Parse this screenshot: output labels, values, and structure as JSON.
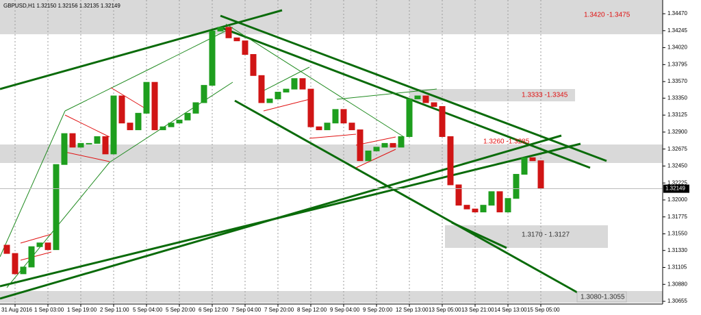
{
  "chart_data": {
    "type": "candlestick",
    "title": "GBPUSD,H1  1.32150 1.32156 1.32135 1.32149",
    "categories": [
      null,
      "31 Aug 2016",
      null,
      null,
      null,
      "1 Sep 03:00",
      null,
      null,
      null,
      "1 Sep 19:00",
      null,
      null,
      null,
      "2 Sep 11:00",
      null,
      null,
      null,
      "5 Sep 04:00",
      null,
      null,
      null,
      "5 Sep 20:00",
      null,
      null,
      null,
      "6 Sep 12:00",
      null,
      null,
      null,
      "7 Sep 04:00",
      null,
      null,
      null,
      "7 Sep 20:00",
      null,
      null,
      null,
      "8 Sep 12:00",
      null,
      null,
      null,
      "9 Sep 04:00",
      null,
      null,
      null,
      "9 Sep 20:00",
      null,
      null,
      null,
      "12 Sep 13:00",
      null,
      null,
      null,
      "13 Sep 05:00",
      null,
      null,
      null,
      "13 Sep 21:00",
      null,
      null,
      null,
      "14 Sep 13:00",
      null,
      null,
      null,
      "15 Sep 05:00"
    ],
    "open": [
      1.314,
      1.3129,
      1.3102,
      1.3111,
      1.3138,
      1.3143,
      1.3134,
      1.3247,
      1.3288,
      1.327,
      1.3275,
      1.3275,
      1.3284,
      1.3261,
      1.3338,
      1.3302,
      1.3293,
      1.3315,
      1.3356,
      1.3293,
      1.3297,
      1.3302,
      1.3306,
      1.3315,
      1.3329,
      1.3352,
      1.3424,
      1.3429,
      1.3415,
      1.3411,
      1.3393,
      1.3365,
      1.3329,
      1.3334,
      1.3343,
      1.3347,
      1.3361,
      1.3347,
      1.3297,
      1.3293,
      1.3302,
      1.332,
      1.3302,
      1.3293,
      1.3252,
      1.3265,
      1.327,
      1.3275,
      1.327,
      1.3284,
      1.3334,
      1.3338,
      1.3329,
      1.3324,
      1.3284,
      1.322,
      1.3193,
      1.3188,
      1.3184,
      1.3193,
      1.3211,
      1.3184,
      1.3202,
      1.3234,
      1.3256,
      1.3252
    ],
    "close": [
      1.3129,
      1.3102,
      1.3111,
      1.3138,
      1.3143,
      1.3134,
      1.3247,
      1.3288,
      1.327,
      1.3275,
      1.3275,
      1.3284,
      1.3261,
      1.3338,
      1.3302,
      1.3293,
      1.3315,
      1.3356,
      1.3293,
      1.3297,
      1.3302,
      1.3306,
      1.3315,
      1.3329,
      1.3352,
      1.3424,
      1.3429,
      1.3415,
      1.3411,
      1.3393,
      1.3365,
      1.3329,
      1.3334,
      1.3343,
      1.3347,
      1.3361,
      1.3347,
      1.3297,
      1.3293,
      1.3302,
      1.332,
      1.3302,
      1.3293,
      1.3252,
      1.3265,
      1.327,
      1.3275,
      1.327,
      1.3284,
      1.3334,
      1.3338,
      1.3329,
      1.3324,
      1.3284,
      1.322,
      1.3193,
      1.3188,
      1.3184,
      1.3193,
      1.3211,
      1.3184,
      1.3202,
      1.3234,
      1.3256,
      1.3252,
      1.3215
    ],
    "up_color": "#1e9e1e",
    "down_color": "#d01515",
    "last_price": 1.32149,
    "ylim": [
      1.30619,
      1.34652
    ],
    "yticks": [
      {
        "value": 1.3447,
        "label": "1.34470"
      },
      {
        "value": 1.34245,
        "label": "1.34245"
      },
      {
        "value": 1.3402,
        "label": "1.34020"
      },
      {
        "value": 1.33795,
        "label": "1.33795"
      },
      {
        "value": 1.3357,
        "label": "1.33570"
      },
      {
        "value": 1.3335,
        "label": "1.33350"
      },
      {
        "value": 1.33125,
        "label": "1.33125"
      },
      {
        "value": 1.329,
        "label": "1.32900"
      },
      {
        "value": 1.32675,
        "label": "1.32675"
      },
      {
        "value": 1.3245,
        "label": "1.32450"
      },
      {
        "value": 1.32225,
        "label": "1.32225"
      },
      {
        "value": 1.32,
        "label": "1.32000"
      },
      {
        "value": 1.31775,
        "label": "1.31775"
      },
      {
        "value": 1.3155,
        "label": "1.31550"
      },
      {
        "value": 1.3133,
        "label": "1.31330"
      },
      {
        "value": 1.31105,
        "label": "1.31105"
      },
      {
        "value": 1.3088,
        "label": "1.30880"
      },
      {
        "value": 1.30655,
        "label": "1.30655"
      }
    ],
    "grid": true,
    "annotations": [
      "1.3420 -1.3475",
      "1.3333 -1.3345",
      "1.3260 -1.3285",
      "1.3170 - 1.3127",
      "1.3080-1.3055"
    ]
  }
}
